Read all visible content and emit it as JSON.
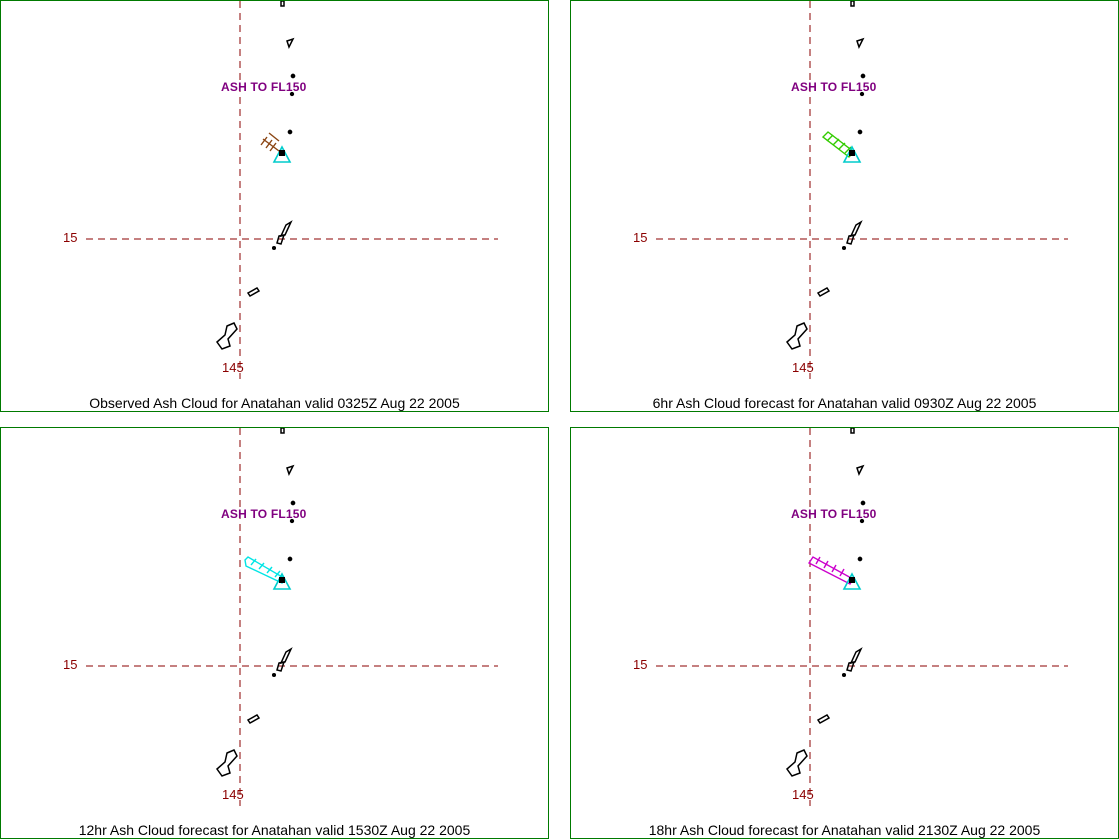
{
  "panels": [
    {
      "caption": "Observed Ash Cloud for Anatahan valid 0325Z Aug 22 2005",
      "ash_label": "ASH TO FL150",
      "lat_label": "15",
      "lon_label": "145",
      "plume_color": "#8b4513",
      "plume_extent": "short"
    },
    {
      "caption": "6hr Ash Cloud forecast for Anatahan valid 0930Z Aug 22 2005",
      "ash_label": "ASH TO FL150",
      "lat_label": "15",
      "lon_label": "145",
      "plume_color": "#33cc00",
      "plume_extent": "medium"
    },
    {
      "caption": "12hr Ash Cloud forecast for Anatahan valid 1530Z Aug 22 2005",
      "ash_label": "ASH TO FL150",
      "lat_label": "15",
      "lon_label": "145",
      "plume_color": "#00e5e5",
      "plume_extent": "long"
    },
    {
      "caption": "18hr Ash Cloud forecast for Anatahan valid 2130Z Aug 22 2005",
      "ash_label": "ASH TO FL150",
      "lat_label": "15",
      "lon_label": "145",
      "plume_color": "#cc00cc",
      "plume_extent": "long"
    }
  ],
  "colors": {
    "panel_border": "#007a00",
    "grid_line": "#8b0000",
    "volcano_marker": "#00cccc",
    "island_outline": "#000000",
    "ash_label": "#800080"
  },
  "icons": {
    "volcano": "volcano-triangle-icon"
  }
}
